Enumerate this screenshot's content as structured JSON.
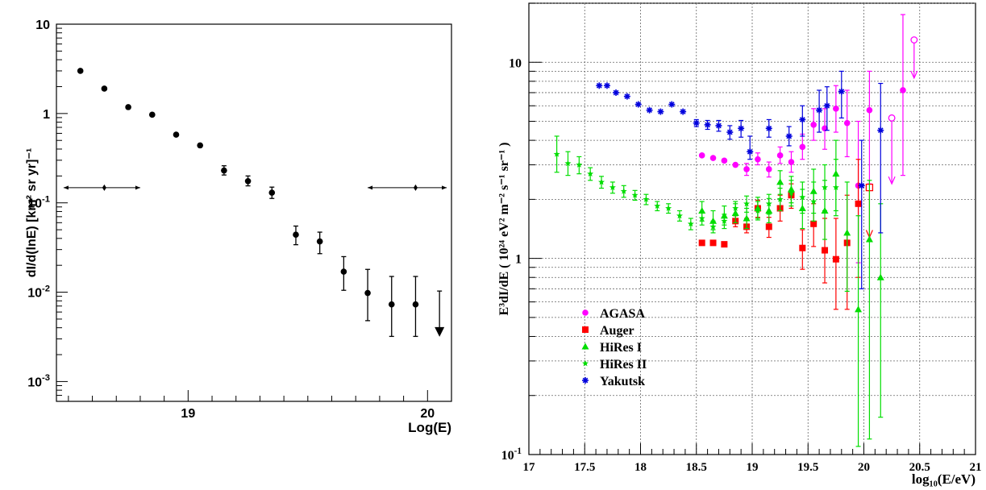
{
  "chart_data": [
    {
      "type": "scatter",
      "xlabel": "Log(E)",
      "ylabel": "dI/d(lnE) [km² sr yr]⁻¹",
      "xlim": [
        18.45,
        20.1
      ],
      "ylim": [
        0.0006,
        10
      ],
      "yscale": "log",
      "grid": false,
      "x_tick_labels": [
        "19",
        "20"
      ],
      "y_tick_labels": [
        "10",
        "1",
        "10⁻¹",
        "10⁻²",
        "10⁻³"
      ],
      "series": [
        {
          "points": [
            {
              "x": 18.55,
              "y": 3.0
            },
            {
              "x": 18.65,
              "y": 1.9
            },
            {
              "x": 18.75,
              "y": 1.18
            },
            {
              "x": 18.85,
              "y": 0.97
            },
            {
              "x": 18.95,
              "y": 0.58
            },
            {
              "x": 19.05,
              "y": 0.44
            },
            {
              "x": 19.15,
              "y": 0.23,
              "lo": 0.205,
              "hi": 0.26
            },
            {
              "x": 19.25,
              "y": 0.175,
              "lo": 0.155,
              "hi": 0.2
            },
            {
              "x": 19.35,
              "y": 0.13,
              "lo": 0.112,
              "hi": 0.15
            },
            {
              "x": 19.45,
              "y": 0.044,
              "lo": 0.034,
              "hi": 0.055
            },
            {
              "x": 19.55,
              "y": 0.037,
              "lo": 0.027,
              "hi": 0.047
            },
            {
              "x": 19.65,
              "y": 0.017,
              "lo": 0.0105,
              "hi": 0.025
            },
            {
              "x": 19.75,
              "y": 0.0098,
              "lo": 0.0048,
              "hi": 0.018
            },
            {
              "x": 19.85,
              "y": 0.0073,
              "lo": 0.0032,
              "hi": 0.015
            },
            {
              "x": 19.95,
              "y": 0.0073,
              "lo": 0.0032,
              "hi": 0.015
            }
          ],
          "upper_limits": [
            {
              "x": 20.05,
              "y": 0.0103,
              "to": 0.0033
            }
          ]
        }
      ],
      "resolution_bars": [
        {
          "center": 18.65,
          "y": 0.148,
          "from": 18.48,
          "to": 18.8
        },
        {
          "center": 19.95,
          "y": 0.148,
          "from": 19.75,
          "to": 20.08
        }
      ]
    },
    {
      "type": "scatter",
      "xlabel": "log₁₀(E/eV)",
      "ylabel": "E³dI/dE ( 10²⁴ eV² m⁻² s⁻¹ sr⁻¹ )",
      "xlim": [
        17,
        21
      ],
      "ylim": [
        0.1,
        20
      ],
      "yscale": "log",
      "grid": true,
      "legend_position": "bottom-left",
      "x_tick_labels": [
        "17",
        "17.5",
        "18",
        "18.5",
        "19",
        "19.5",
        "20",
        "20.5",
        "21"
      ],
      "y_tick_labels": [
        "10",
        "1",
        "10⁻¹"
      ],
      "series": [
        {
          "name": "AGASA",
          "color": "#ff00ff",
          "marker": "circle",
          "points": [
            {
              "x": 18.55,
              "y": 3.35
            },
            {
              "x": 18.65,
              "y": 3.25
            },
            {
              "x": 18.75,
              "y": 3.15
            },
            {
              "x": 18.85,
              "y": 3.0
            },
            {
              "x": 18.95,
              "y": 2.85,
              "lo": 2.65,
              "hi": 3.05
            },
            {
              "x": 19.05,
              "y": 3.2,
              "lo": 3.0,
              "hi": 3.45
            },
            {
              "x": 19.15,
              "y": 2.85,
              "lo": 2.6,
              "hi": 3.1
            },
            {
              "x": 19.25,
              "y": 3.35,
              "lo": 3.05,
              "hi": 3.7
            },
            {
              "x": 19.35,
              "y": 3.1,
              "lo": 2.75,
              "hi": 3.5
            },
            {
              "x": 19.45,
              "y": 3.7,
              "lo": 3.2,
              "hi": 4.3
            },
            {
              "x": 19.55,
              "y": 4.8,
              "lo": 4.0,
              "hi": 5.8
            },
            {
              "x": 19.65,
              "y": 4.6,
              "lo": 3.6,
              "hi": 5.8
            },
            {
              "x": 19.75,
              "y": 5.8,
              "lo": 4.4,
              "hi": 7.6
            },
            {
              "x": 19.85,
              "y": 4.9,
              "lo": 3.3,
              "hi": 7.2
            },
            {
              "x": 19.95,
              "y": 2.35,
              "lo": 0.95,
              "hi": 5.0
            },
            {
              "x": 20.05,
              "y": 5.7,
              "lo": 2.4,
              "hi": 9.0
            },
            {
              "x": 20.35,
              "y": 7.2,
              "lo": 2.65,
              "hi": 17.5
            }
          ],
          "upper_limits": [
            {
              "x": 20.25,
              "y": 5.2,
              "to": 2.4
            },
            {
              "x": 20.45,
              "y": 13.0,
              "to": 8.3
            }
          ]
        },
        {
          "name": "Auger",
          "color": "#ff0000",
          "marker": "square",
          "points": [
            {
              "x": 18.55,
              "y": 1.2
            },
            {
              "x": 18.65,
              "y": 1.2
            },
            {
              "x": 18.75,
              "y": 1.18
            },
            {
              "x": 18.85,
              "y": 1.55,
              "lo": 1.45,
              "hi": 1.65
            },
            {
              "x": 18.95,
              "y": 1.45,
              "lo": 1.35,
              "hi": 1.6
            },
            {
              "x": 19.05,
              "y": 1.8,
              "lo": 1.62,
              "hi": 1.98
            },
            {
              "x": 19.15,
              "y": 1.45,
              "lo": 1.28,
              "hi": 1.62
            },
            {
              "x": 19.25,
              "y": 1.8,
              "lo": 1.55,
              "hi": 2.1
            },
            {
              "x": 19.35,
              "y": 2.1,
              "lo": 1.8,
              "hi": 2.4
            },
            {
              "x": 19.45,
              "y": 1.13,
              "lo": 0.88,
              "hi": 1.4
            },
            {
              "x": 19.55,
              "y": 1.5,
              "lo": 1.15,
              "hi": 1.9
            },
            {
              "x": 19.65,
              "y": 1.1,
              "lo": 0.75,
              "hi": 1.6
            },
            {
              "x": 19.75,
              "y": 0.99,
              "lo": 0.55,
              "hi": 1.6
            },
            {
              "x": 19.85,
              "y": 1.2,
              "lo": 0.55,
              "hi": 2.1
            },
            {
              "x": 19.95,
              "y": 1.9,
              "lo": 0.8,
              "hi": 3.2
            }
          ],
          "upper_limits": [
            {
              "x": 20.05,
              "y": 2.3,
              "to": 1.28
            }
          ]
        },
        {
          "name": "HiRes I",
          "color": "#00dd00",
          "marker": "triangle",
          "points": [
            {
              "x": 18.55,
              "y": 1.75,
              "lo": 1.55,
              "hi": 1.95
            },
            {
              "x": 18.65,
              "y": 1.55,
              "lo": 1.4,
              "hi": 1.75
            },
            {
              "x": 18.75,
              "y": 1.65,
              "lo": 1.48,
              "hi": 1.85
            },
            {
              "x": 18.85,
              "y": 1.7,
              "lo": 1.52,
              "hi": 1.9
            },
            {
              "x": 18.95,
              "y": 1.6,
              "lo": 1.42,
              "hi": 1.8
            },
            {
              "x": 19.05,
              "y": 1.8,
              "lo": 1.6,
              "hi": 2.05
            },
            {
              "x": 19.15,
              "y": 1.75,
              "lo": 1.52,
              "hi": 2.02
            },
            {
              "x": 19.25,
              "y": 2.45,
              "lo": 2.12,
              "hi": 2.8
            },
            {
              "x": 19.35,
              "y": 2.25,
              "lo": 1.92,
              "hi": 2.62
            },
            {
              "x": 19.45,
              "y": 1.8,
              "lo": 1.42,
              "hi": 2.25
            },
            {
              "x": 19.55,
              "y": 2.2,
              "lo": 1.7,
              "hi": 2.85
            },
            {
              "x": 19.65,
              "y": 1.75,
              "lo": 1.25,
              "hi": 2.5
            },
            {
              "x": 19.75,
              "y": 2.7,
              "lo": 1.75,
              "hi": 4.0
            },
            {
              "x": 19.85,
              "y": 1.35,
              "lo": 0.68,
              "hi": 2.45
            },
            {
              "x": 19.95,
              "y": 0.55,
              "lo": 0.11,
              "hi": 1.65
            },
            {
              "x": 20.05,
              "y": 1.25,
              "lo": 0.12,
              "hi": 2.5
            },
            {
              "x": 20.15,
              "y": 0.8,
              "lo": 0.155,
              "hi": 1.9
            }
          ]
        },
        {
          "name": "HiRes II",
          "color": "#00dd00",
          "marker": "star",
          "points": [
            {
              "x": 17.25,
              "y": 3.4,
              "lo": 2.75,
              "hi": 4.2
            },
            {
              "x": 17.35,
              "y": 3.05,
              "lo": 2.65,
              "hi": 3.5
            },
            {
              "x": 17.45,
              "y": 3.0,
              "lo": 2.7,
              "hi": 3.3
            },
            {
              "x": 17.55,
              "y": 2.7,
              "lo": 2.5,
              "hi": 2.9
            },
            {
              "x": 17.65,
              "y": 2.45,
              "lo": 2.28,
              "hi": 2.62
            },
            {
              "x": 17.75,
              "y": 2.3,
              "lo": 2.15,
              "hi": 2.45
            },
            {
              "x": 17.85,
              "y": 2.2,
              "lo": 2.05,
              "hi": 2.35
            },
            {
              "x": 17.95,
              "y": 2.1,
              "lo": 1.98,
              "hi": 2.22
            },
            {
              "x": 18.05,
              "y": 2.0,
              "lo": 1.88,
              "hi": 2.12
            },
            {
              "x": 18.15,
              "y": 1.85,
              "lo": 1.75,
              "hi": 1.95
            },
            {
              "x": 18.25,
              "y": 1.8,
              "lo": 1.7,
              "hi": 1.9
            },
            {
              "x": 18.35,
              "y": 1.65,
              "lo": 1.55,
              "hi": 1.75
            },
            {
              "x": 18.45,
              "y": 1.5,
              "lo": 1.4,
              "hi": 1.6
            },
            {
              "x": 18.55,
              "y": 1.6,
              "lo": 1.48,
              "hi": 1.72
            },
            {
              "x": 18.65,
              "y": 1.45,
              "lo": 1.35,
              "hi": 1.55
            },
            {
              "x": 18.75,
              "y": 1.55,
              "lo": 1.42,
              "hi": 1.68
            },
            {
              "x": 18.85,
              "y": 1.8,
              "lo": 1.65,
              "hi": 1.95
            },
            {
              "x": 18.95,
              "y": 1.9,
              "lo": 1.72,
              "hi": 2.08
            },
            {
              "x": 19.05,
              "y": 1.75,
              "lo": 1.57,
              "hi": 1.95
            },
            {
              "x": 19.15,
              "y": 1.9,
              "lo": 1.68,
              "hi": 2.12
            },
            {
              "x": 19.25,
              "y": 2.0,
              "lo": 1.75,
              "hi": 2.28
            },
            {
              "x": 19.35,
              "y": 2.15,
              "lo": 1.85,
              "hi": 2.5
            },
            {
              "x": 19.45,
              "y": 2.05,
              "lo": 1.7,
              "hi": 2.45
            },
            {
              "x": 19.55,
              "y": 1.95,
              "lo": 1.55,
              "hi": 2.45
            },
            {
              "x": 19.65,
              "y": 2.3,
              "lo": 1.75,
              "hi": 3.0
            },
            {
              "x": 19.75,
              "y": 2.3,
              "lo": 1.65,
              "hi": 3.2
            }
          ]
        },
        {
          "name": "Yakutsk",
          "color": "#0000dd",
          "marker": "asterisk",
          "points": [
            {
              "x": 17.63,
              "y": 7.6
            },
            {
              "x": 17.7,
              "y": 7.6
            },
            {
              "x": 17.78,
              "y": 7.0
            },
            {
              "x": 17.88,
              "y": 6.7
            },
            {
              "x": 17.98,
              "y": 6.1
            },
            {
              "x": 18.08,
              "y": 5.7
            },
            {
              "x": 18.18,
              "y": 5.6
            },
            {
              "x": 18.28,
              "y": 6.1
            },
            {
              "x": 18.38,
              "y": 5.6
            },
            {
              "x": 18.5,
              "y": 4.9,
              "lo": 4.7,
              "hi": 5.1
            },
            {
              "x": 18.6,
              "y": 4.8,
              "lo": 4.55,
              "hi": 5.05
            },
            {
              "x": 18.7,
              "y": 4.75,
              "lo": 4.45,
              "hi": 5.05
            },
            {
              "x": 18.8,
              "y": 4.4,
              "lo": 4.05,
              "hi": 4.75
            },
            {
              "x": 18.9,
              "y": 4.6,
              "lo": 4.15,
              "hi": 5.05
            },
            {
              "x": 18.98,
              "y": 3.5,
              "lo": 3.2,
              "hi": 4.2
            },
            {
              "x": 19.15,
              "y": 4.6,
              "lo": 4.15,
              "hi": 5.1
            },
            {
              "x": 19.33,
              "y": 4.2,
              "lo": 3.75,
              "hi": 4.7
            },
            {
              "x": 19.45,
              "y": 5.1,
              "lo": 4.2,
              "hi": 6.0
            },
            {
              "x": 19.6,
              "y": 5.7,
              "lo": 4.4,
              "hi": 7.2
            },
            {
              "x": 19.67,
              "y": 6.0,
              "lo": 4.5,
              "hi": 7.5
            },
            {
              "x": 19.8,
              "y": 7.1,
              "lo": 5.2,
              "hi": 9.0
            },
            {
              "x": 19.98,
              "y": 2.35,
              "lo": 0.7,
              "hi": 4.0
            },
            {
              "x": 20.15,
              "y": 4.5,
              "lo": 1.35,
              "hi": 7.8
            }
          ]
        }
      ]
    }
  ]
}
